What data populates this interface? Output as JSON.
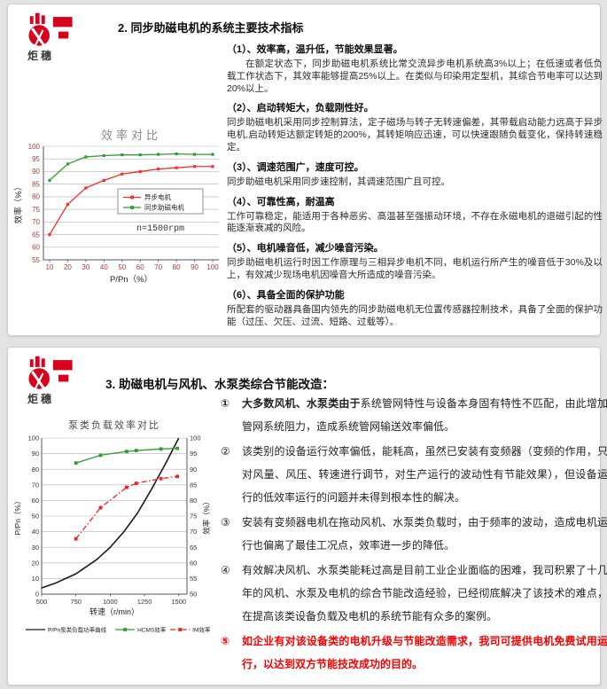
{
  "brand": {
    "logo_text": "炬穗",
    "logo_color": "#d9001b"
  },
  "panel1": {
    "title": "2. 同步助磁电机的系统主要技术指标",
    "sections": [
      {
        "heading": "（1）、效率高，温升低，节能效果显著。",
        "body": "在额定状态下，同步助磁电机系统比常交流异步电机系统高3%以上；在低速或者低负载工作状态下，其效率能够提高25%以上。在类似与印染用定型机，其综合节电率可以达到20%以上。"
      },
      {
        "heading": "（2）、启动转矩大，负载刚性好。",
        "body": "同步助磁电机采用同步控制算法，定子磁场与转子无转速偏差，其带载启动能力远高于异步电机,启动转矩达额定转矩的200%，其转矩响应迅速，可以快速跟随负载变化，保持转速稳定。"
      },
      {
        "heading": "（3）、调速范围广，速度可控。",
        "body": "同步助磁电机采用同步速控制，其调速范围广且可控。"
      },
      {
        "heading": "（4）、可靠性高，耐温高",
        "body": "工作可靠稳定，能适用于各种恶劣、高温甚至强振动环境，不存在永磁电机的退磁引起的性能逐渐衰减的风险。"
      },
      {
        "heading": "（5）、电机噪音低，减少噪音污染。",
        "body": "同步助磁电机运行时因工作原理与三相异步电机不同，电机运行所产生的噪音低于30%及以上，有效减少现场电机因噪音大所造成的噪音污染。"
      },
      {
        "heading": "（6）、具备全面的保护功能",
        "body": "所配套的驱动器具备国内领先的同步助磁电机无位置传感器控制技术，具备了全面的保护功能（过压、欠压、过流、短路、过载等）。"
      }
    ]
  },
  "panel2": {
    "title": "3. 助磁电机与风机、水泵类综合节能改造：",
    "items": [
      {
        "marker": "①",
        "lead_bold": "大多数风机、水泵类由于",
        "body": "系统管网特性与设备本身固有特性不匹配，由此增加管网系统阻力，造成系统管网输送效率偏低。"
      },
      {
        "marker": "②",
        "body": "该类别的设备运行效率偏低，能耗高，虽然已安装有变频器（变频的作用，只对风量、风压、转速进行调节，对生产运行的波动性有节能效果），但设备运行的低效率运行的问题并未得到根本性的解决。"
      },
      {
        "marker": "③",
        "body": "安装有变频器电机在拖动风机、水泵类负载时，由于频率的波动，造成电机运行也偏离了最佳工况点，效率进一步的降低。"
      },
      {
        "marker": "④",
        "body": "有效解决风机、水泵类能耗过高是目前工业企业面临的困难，我司积累了十几年的风机、水泵及电机的综合节能改造经验，已经彻底解决了该技术的难点，在提高该类设备负载及电机的系统节能有众多的案例。"
      },
      {
        "marker": "⑤",
        "body": "如企业有对该设备类的电机升级与节能改造需求，我司可提供电机免费试用运行，以达到双方节能技改成功的目的。",
        "color": "#fb0000"
      }
    ]
  },
  "chart_data": [
    {
      "type": "line",
      "title": "效率对比",
      "xlabel": "P/Pn（%）",
      "ylabel": "效率（%）",
      "annotation": "n=1500rpm",
      "x": [
        10,
        20,
        30,
        40,
        50,
        60,
        70,
        80,
        90,
        100
      ],
      "ylim": [
        55,
        100
      ],
      "ytick_step": 5,
      "tick_color": "#a04040",
      "grid": true,
      "legend_position": "inside-right",
      "series": [
        {
          "name": "异步电机",
          "color": "#ff2a2a",
          "values": [
            65,
            77,
            83.5,
            86.5,
            89,
            90,
            91,
            91.5,
            92,
            92
          ]
        },
        {
          "name": "同步助磁电机",
          "color": "#2f9e2f",
          "values": [
            86.5,
            93,
            95.8,
            96.3,
            96.6,
            96.6,
            96.8,
            97,
            96.8,
            96.8
          ]
        }
      ]
    },
    {
      "type": "line",
      "title": "泵类负载效率对比",
      "xlabel": "转速（r/min）",
      "ylabel_left": "P/Pn（%）",
      "ylabel_right": "效率（%）",
      "xlim": [
        500,
        1560
      ],
      "xticks": [
        500,
        750,
        1000,
        1250,
        1500
      ],
      "ylim_left": [
        0,
        100
      ],
      "ytick_step_left": 10,
      "ylim_right": [
        50,
        100
      ],
      "ytick_step_right": 5,
      "tick_color": "#333333",
      "grid": true,
      "legend_position": "bottom",
      "series": [
        {
          "name": "P/Pn泵类负载功率曲线",
          "color": "#1a1a1a",
          "axis": "left",
          "dash": "solid",
          "marker": false,
          "x": [
            500,
            600,
            700,
            750,
            800,
            900,
            1000,
            1100,
            1200,
            1300,
            1400,
            1500
          ],
          "values": [
            4,
            7,
            11,
            13,
            16,
            22,
            30,
            40,
            52,
            67,
            83,
            100
          ]
        },
        {
          "name": "HCMS效率",
          "color": "#2f9e2f",
          "axis": "right",
          "dash": "solid",
          "marker": true,
          "x": [
            750,
            930,
            1120,
            1190,
            1370,
            1490
          ],
          "values": [
            92,
            94.5,
            95.7,
            96,
            96.5,
            96.7
          ]
        },
        {
          "name": "IM效率",
          "color": "#ee2222",
          "axis": "right",
          "dash": "dashdot",
          "marker": true,
          "x": [
            750,
            930,
            1120,
            1190,
            1370,
            1490
          ],
          "values": [
            67.7,
            77.7,
            84.2,
            85.5,
            87,
            87.7
          ]
        }
      ]
    }
  ]
}
